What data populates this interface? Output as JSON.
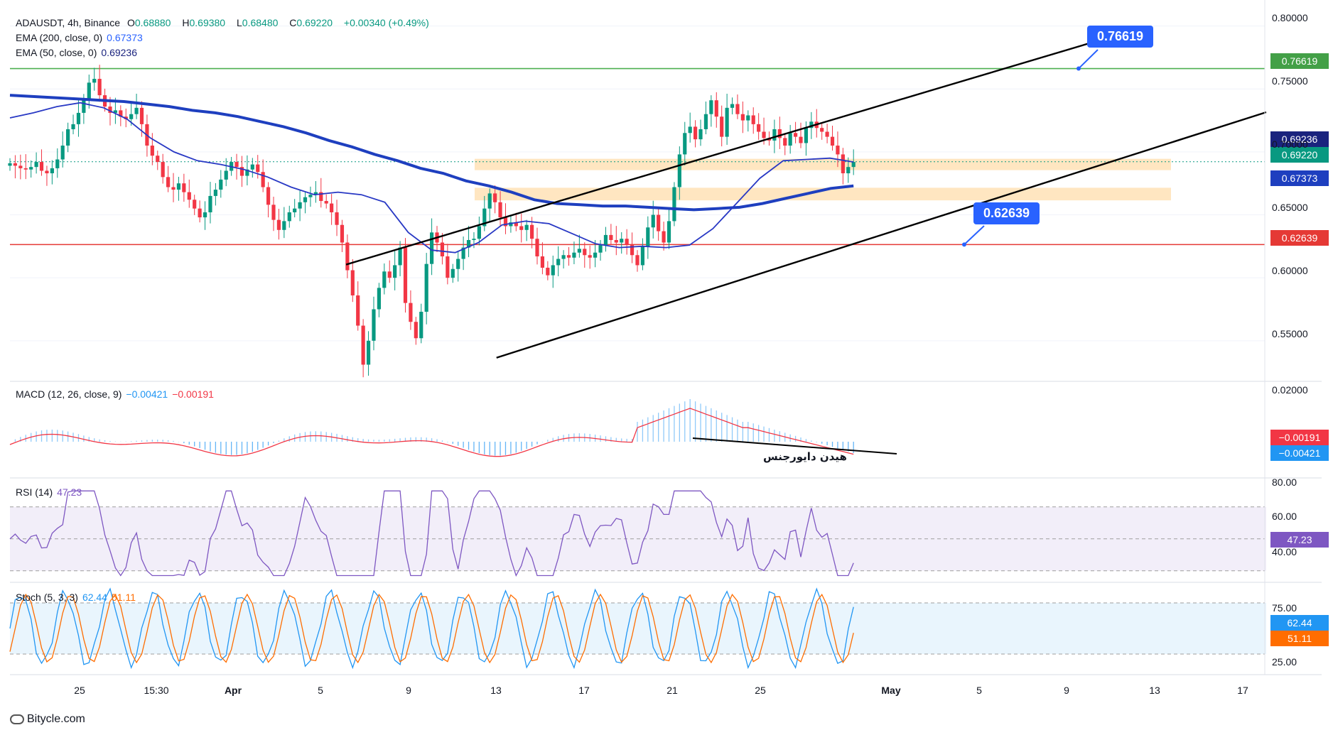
{
  "header": {
    "symbol": "ADAUSDT, 4h, Binance",
    "open_label": "O",
    "open": "0.68880",
    "high_label": "H",
    "high": "0.69380",
    "low_label": "L",
    "low": "0.68480",
    "close_label": "C",
    "close": "0.69220",
    "change": "+0.00340 (+0.49%)"
  },
  "indicators": {
    "ema200_label": "EMA (200, close, 0)",
    "ema200_value": "0.67373",
    "ema50_label": "EMA (50, close, 0)",
    "ema50_value": "0.69236",
    "macd_label": "MACD (12, 26, close, 9)",
    "macd_value": "−0.00421",
    "signal_value": "−0.00191",
    "rsi_label": "RSI (14)",
    "rsi_value": "47.23",
    "stoch_label": "Stoch (5, 3, 3)",
    "stoch_k": "62.44",
    "stoch_d": "51.11"
  },
  "callouts": {
    "resistance": "0.76619",
    "support": "0.62639"
  },
  "annotation": "هیدن دایورجنس",
  "brand": "Bitycle.com",
  "price_tags": {
    "resistance": "0.76619",
    "ema50": "0.69236",
    "last": "0.69220",
    "ema200": "0.67373",
    "support": "0.62639",
    "signal": "−0.00191",
    "macd": "−0.00421",
    "rsi": "47.23",
    "stoch_k": "62.44",
    "stoch_d": "51.11"
  },
  "colors": {
    "up": "#089981",
    "down": "#f23645",
    "ema200": "#1e3fbf",
    "ema50": "#1a237e",
    "resistance": "#4caf50",
    "support": "#e53935",
    "zone": "#ffe0b2",
    "callout": "#2962ff",
    "macd_line": "#2196f3",
    "signal_line": "#f23645",
    "rsi": "#7e57c2",
    "stoch_k": "#2196f3",
    "stoch_d": "#ff6d00"
  },
  "chart_data": {
    "type": "candlestick",
    "price_axis": [
      "0.80000",
      "0.75000",
      "0.70000",
      "0.65000",
      "0.60000",
      "0.55000"
    ],
    "price_range": [
      0.52,
      0.815
    ],
    "time_axis": [
      "25",
      "15:30",
      "Apr",
      "5",
      "9",
      "13",
      "17",
      "21",
      "25",
      "May",
      "5",
      "9",
      "13",
      "17"
    ],
    "resistance_level": 0.76619,
    "support_level": 0.62639,
    "zones": [
      {
        "from": 0.6855,
        "to": 0.6945
      },
      {
        "from": 0.6615,
        "to": 0.6715
      }
    ],
    "channel": {
      "upper": [
        {
          "t": 19,
          "p": 0.6105
        },
        {
          "t": 62.5,
          "p": 0.7925
        }
      ],
      "lower": [
        {
          "t": 27.5,
          "p": 0.5365
        },
        {
          "t": 71,
          "p": 0.7315
        }
      ]
    },
    "closes": [
      0.691,
      0.689,
      0.687,
      0.686,
      0.688,
      0.692,
      0.685,
      0.683,
      0.687,
      0.694,
      0.705,
      0.718,
      0.722,
      0.731,
      0.742,
      0.755,
      0.758,
      0.745,
      0.736,
      0.731,
      0.733,
      0.728,
      0.726,
      0.73,
      0.735,
      0.722,
      0.705,
      0.697,
      0.692,
      0.68,
      0.672,
      0.67,
      0.675,
      0.668,
      0.662,
      0.655,
      0.648,
      0.652,
      0.665,
      0.67,
      0.678,
      0.685,
      0.692,
      0.688,
      0.681,
      0.686,
      0.69,
      0.684,
      0.672,
      0.658,
      0.646,
      0.638,
      0.645,
      0.652,
      0.655,
      0.66,
      0.664,
      0.666,
      0.668,
      0.661,
      0.659,
      0.652,
      0.642,
      0.628,
      0.606,
      0.586,
      0.562,
      0.531,
      0.55,
      0.575,
      0.592,
      0.605,
      0.6,
      0.61,
      0.624,
      0.58,
      0.565,
      0.552,
      0.573,
      0.611,
      0.636,
      0.628,
      0.617,
      0.6,
      0.607,
      0.615,
      0.624,
      0.63,
      0.631,
      0.641,
      0.655,
      0.667,
      0.66,
      0.648,
      0.641,
      0.644,
      0.641,
      0.638,
      0.642,
      0.631,
      0.617,
      0.608,
      0.602,
      0.61,
      0.615,
      0.618,
      0.616,
      0.62,
      0.623,
      0.618,
      0.616,
      0.62,
      0.626,
      0.634,
      0.63,
      0.628,
      0.631,
      0.626,
      0.618,
      0.61,
      0.625,
      0.64,
      0.65,
      0.637,
      0.628,
      0.645,
      0.672,
      0.698,
      0.715,
      0.72,
      0.71,
      0.718,
      0.73,
      0.741,
      0.728,
      0.712,
      0.735,
      0.738,
      0.73,
      0.725,
      0.729,
      0.722,
      0.716,
      0.711,
      0.709,
      0.718,
      0.711,
      0.705,
      0.715,
      0.712,
      0.707,
      0.719,
      0.724,
      0.719,
      0.716,
      0.712,
      0.705,
      0.698,
      0.683,
      0.688,
      0.692
    ],
    "series": [
      {
        "name": "EMA (200, close, 0)",
        "values": [
          0.745,
          0.744,
          0.743,
          0.742,
          0.741,
          0.74,
          0.738,
          0.736,
          0.733,
          0.731,
          0.728,
          0.724,
          0.72,
          0.715,
          0.709,
          0.704,
          0.698,
          0.693,
          0.687,
          0.683,
          0.677,
          0.673,
          0.668,
          0.662,
          0.659,
          0.658,
          0.657,
          0.657,
          0.656,
          0.655,
          0.654,
          0.655,
          0.656,
          0.659,
          0.663,
          0.667,
          0.671,
          0.673
        ]
      },
      {
        "name": "EMA (50, close, 0)",
        "values": [
          0.727,
          0.731,
          0.736,
          0.739,
          0.735,
          0.726,
          0.711,
          0.7,
          0.693,
          0.69,
          0.686,
          0.68,
          0.672,
          0.666,
          0.668,
          0.666,
          0.66,
          0.636,
          0.622,
          0.62,
          0.628,
          0.642,
          0.645,
          0.643,
          0.635,
          0.627,
          0.624,
          0.625,
          0.624,
          0.626,
          0.639,
          0.659,
          0.679,
          0.693,
          0.694,
          0.695,
          0.692
        ]
      }
    ],
    "macd": {
      "label": "MACD (12, 26, close, 9)",
      "macd": -0.00421,
      "signal": -0.00191,
      "axis": [
        "0.02000"
      ]
    },
    "rsi": {
      "label": "RSI (14)",
      "value": 47.23,
      "axis": [
        "80.00",
        "60.00",
        "40.00"
      ],
      "bands": [
        30,
        70
      ]
    },
    "stoch": {
      "label": "Stoch (5, 3, 3)",
      "k": 62.44,
      "d": 51.11,
      "axis": [
        "75.00",
        "25.00"
      ],
      "bands": [
        20,
        80
      ]
    }
  }
}
